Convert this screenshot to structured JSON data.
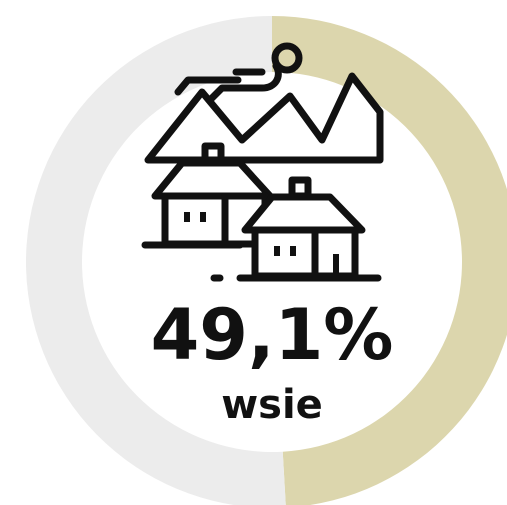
{
  "chart_data": {
    "type": "donut",
    "categories": [
      "wsie",
      null
    ],
    "values": [
      49.1,
      50.9
    ],
    "value_labels": [
      "49,1%",
      null
    ],
    "colors": [
      "#dcd6ad",
      "#ececec"
    ]
  }
}
